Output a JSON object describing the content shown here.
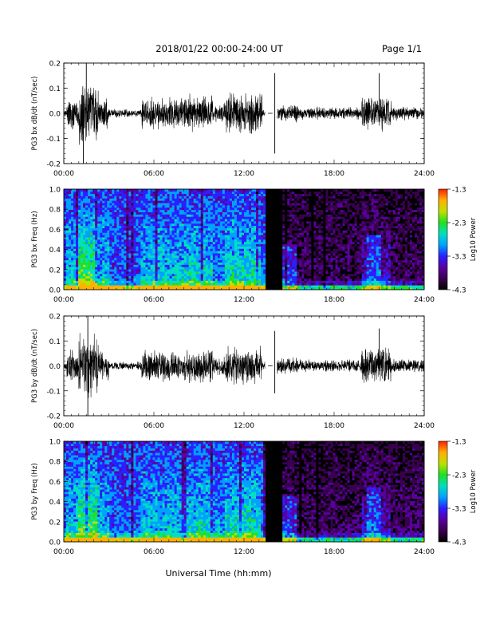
{
  "header": {
    "title": "2018/01/22  00:00-24:00 UT",
    "page": "Page 1/1"
  },
  "footer": {
    "xlabel": "Universal Time (hh:mm)"
  },
  "colors": {
    "trace": "#000000",
    "colormap": [
      "#000000",
      "#3a0050",
      "#5a00a0",
      "#2a20ff",
      "#00a0ff",
      "#00e0c0",
      "#20e020",
      "#c0e000",
      "#ffb000",
      "#ff2000"
    ]
  },
  "chart_data": [
    {
      "type": "line",
      "ylabel": "PG3 bx dB/dt (nT/sec)",
      "x_ticks": [
        "00:00",
        "06:00",
        "12:00",
        "18:00",
        "24:00"
      ],
      "y_ticks": [
        "0.2",
        "0.1",
        "0.0",
        "-0.1",
        "-0.2"
      ],
      "xlim": [
        0,
        24
      ],
      "ylim": [
        -0.2,
        0.2
      ],
      "data_gap": [
        13.4,
        14.2
      ],
      "spikes": [
        {
          "x": 1.5,
          "y": 0.2
        },
        {
          "x": 1.3,
          "y": -0.2
        },
        {
          "x": 14.05,
          "y": 0.16
        },
        {
          "x": 14.05,
          "y": -0.16
        },
        {
          "x": 21,
          "y": 0.16
        }
      ]
    },
    {
      "type": "heatmap",
      "ylabel": "PG3 bx Freq (Hz)",
      "x_ticks": [
        "00:00",
        "06:00",
        "12:00",
        "18:00",
        "24:00"
      ],
      "y_ticks": [
        "1.0",
        "0.8",
        "0.6",
        "0.4",
        "0.2",
        "0.0"
      ],
      "xlim": [
        0,
        24
      ],
      "ylim": [
        0,
        1.0
      ],
      "colorbar": {
        "label": "Log10 Power",
        "ticks": [
          "-1.3",
          "-2.3",
          "-3.3",
          "-4.3"
        ],
        "range": [
          -4.3,
          -1.3
        ]
      },
      "data_gap": [
        13.4,
        14.6
      ]
    },
    {
      "type": "line",
      "ylabel": "PG3 by dB/dt (nT/sec)",
      "x_ticks": [
        "00:00",
        "06:00",
        "12:00",
        "18:00",
        "24:00"
      ],
      "y_ticks": [
        "0.2",
        "0.1",
        "0.0",
        "-0.1",
        "-0.2"
      ],
      "xlim": [
        0,
        24
      ],
      "ylim": [
        -0.2,
        0.2
      ],
      "data_gap": [
        13.4,
        14.2
      ],
      "spikes": [
        {
          "x": 1.6,
          "y": 0.2
        },
        {
          "x": 1.6,
          "y": -0.2
        },
        {
          "x": 14.05,
          "y": 0.14
        },
        {
          "x": 14.05,
          "y": -0.11
        },
        {
          "x": 21,
          "y": 0.15
        }
      ]
    },
    {
      "type": "heatmap",
      "ylabel": "PG3 by Freq (Hz)",
      "x_ticks": [
        "00:00",
        "06:00",
        "12:00",
        "18:00",
        "24:00"
      ],
      "y_ticks": [
        "1.0",
        "0.8",
        "0.6",
        "0.4",
        "0.2",
        "0.0"
      ],
      "xlim": [
        0,
        24
      ],
      "ylim": [
        0,
        1.0
      ],
      "colorbar": {
        "label": "Log10 Power",
        "ticks": [
          "-1.3",
          "-2.3",
          "-3.3",
          "-4.3"
        ],
        "range": [
          -4.3,
          -1.3
        ]
      },
      "data_gap": [
        13.4,
        14.6
      ]
    }
  ]
}
